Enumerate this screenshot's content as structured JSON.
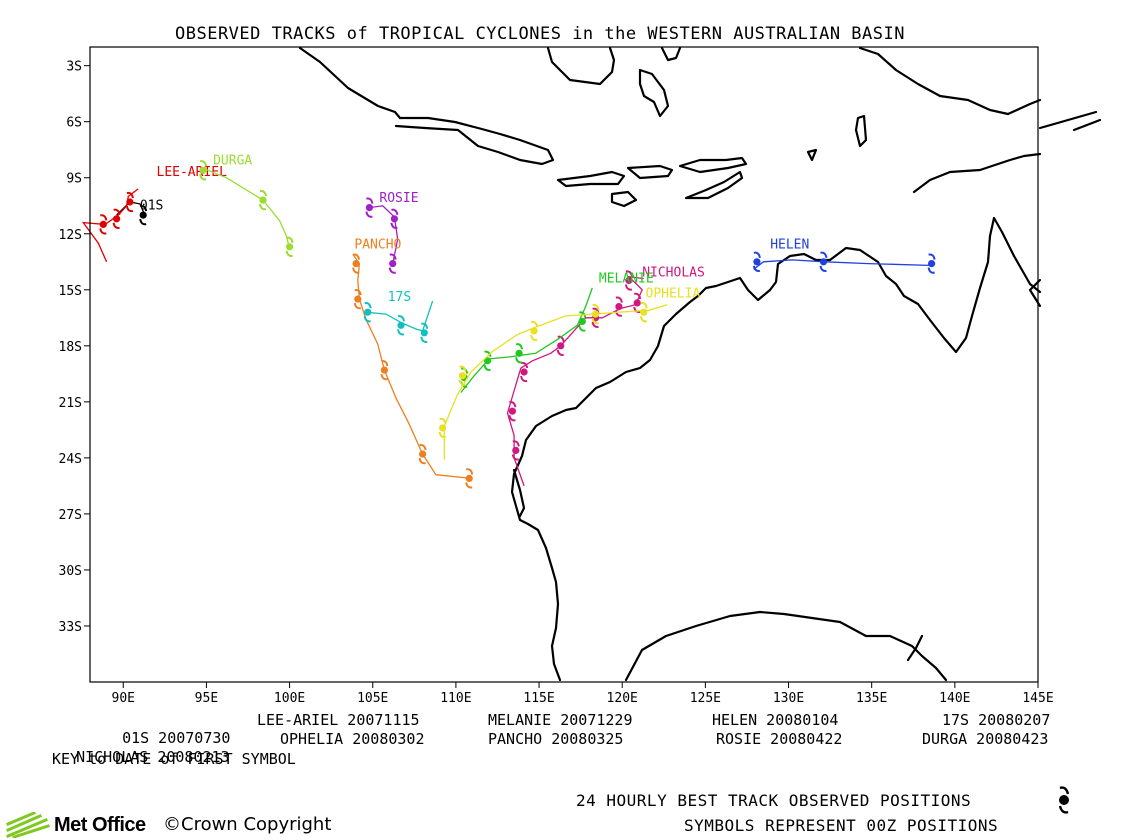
{
  "title": "OBSERVED TRACKS of TROPICAL CYCLONES in the WESTERN AUSTRALIAN BASIN",
  "map": {
    "lon_range": [
      88,
      145
    ],
    "lat_range": [
      -36,
      -2
    ],
    "lon_ticks": [
      {
        "v": 90,
        "label": "90E"
      },
      {
        "v": 95,
        "label": "95E"
      },
      {
        "v": 100,
        "label": "100E"
      },
      {
        "v": 105,
        "label": "105E"
      },
      {
        "v": 110,
        "label": "110E"
      },
      {
        "v": 115,
        "label": "115E"
      },
      {
        "v": 120,
        "label": "120E"
      },
      {
        "v": 125,
        "label": "125E"
      },
      {
        "v": 130,
        "label": "130E"
      },
      {
        "v": 135,
        "label": "135E"
      },
      {
        "v": 140,
        "label": "140E"
      },
      {
        "v": 145,
        "label": "145E"
      }
    ],
    "lat_ticks": [
      {
        "v": -3,
        "label": "3S"
      },
      {
        "v": -6,
        "label": "6S"
      },
      {
        "v": -9,
        "label": "9S"
      },
      {
        "v": -12,
        "label": "12S"
      },
      {
        "v": -15,
        "label": "15S"
      },
      {
        "v": -18,
        "label": "18S"
      },
      {
        "v": -21,
        "label": "21S"
      },
      {
        "v": -24,
        "label": "24S"
      },
      {
        "v": -27,
        "label": "27S"
      },
      {
        "v": -30,
        "label": "30S"
      },
      {
        "v": -33,
        "label": "33S"
      }
    ],
    "storms": [
      {
        "name": "01S",
        "color": "#000000",
        "label_at": [
          91,
          -10.7
        ],
        "track": [
          [
            89.6,
            -11.0
          ],
          [
            90.4,
            -10.3
          ],
          [
            91.0,
            -10.4
          ],
          [
            91.3,
            -11.0
          ]
        ],
        "positions": [
          [
            91.2,
            -11.0
          ]
        ]
      },
      {
        "name": "LEE-ARIEL",
        "color": "#e00000",
        "label_at": [
          92,
          -8.9
        ],
        "track": [
          [
            89.0,
            -13.5
          ],
          [
            88.5,
            -12.5
          ],
          [
            87.6,
            -11.4
          ],
          [
            88.9,
            -11.5
          ],
          [
            89.7,
            -11.0
          ],
          [
            90.2,
            -10.5
          ],
          [
            90.3,
            -10.0
          ],
          [
            90.9,
            -9.6
          ]
        ],
        "positions": [
          [
            88.8,
            -11.5
          ],
          [
            89.6,
            -11.2
          ],
          [
            90.4,
            -10.3
          ]
        ]
      },
      {
        "name": "DURGA",
        "color": "#9adc30",
        "label_at": [
          95.4,
          -8.3
        ],
        "track": [
          [
            94.8,
            -8.5
          ],
          [
            96.2,
            -9.0
          ],
          [
            97.3,
            -9.6
          ],
          [
            98.4,
            -10.2
          ],
          [
            99.4,
            -11.3
          ],
          [
            99.8,
            -12.1
          ],
          [
            100.0,
            -12.8
          ]
        ],
        "positions": [
          [
            94.8,
            -8.6
          ],
          [
            98.4,
            -10.2
          ],
          [
            100.0,
            -12.7
          ]
        ]
      },
      {
        "name": "ROSIE",
        "color": "#a020c8",
        "label_at": [
          105.4,
          -10.3
        ],
        "track": [
          [
            104.8,
            -10.6
          ],
          [
            105.6,
            -10.5
          ],
          [
            106.3,
            -11.1
          ],
          [
            106.5,
            -12.3
          ],
          [
            106.2,
            -13.6
          ]
        ],
        "positions": [
          [
            104.8,
            -10.6
          ],
          [
            106.3,
            -11.2
          ],
          [
            106.2,
            -13.6
          ]
        ]
      },
      {
        "name": "PANCHO",
        "color": "#ee7f20",
        "label_at": [
          103.9,
          -12.8
        ],
        "track": [
          [
            103.8,
            -13.1
          ],
          [
            104.2,
            -13.6
          ],
          [
            104.1,
            -14.5
          ],
          [
            104.2,
            -15.5
          ],
          [
            104.6,
            -16.6
          ],
          [
            105.3,
            -17.9
          ],
          [
            105.7,
            -19.3
          ],
          [
            106.4,
            -20.8
          ],
          [
            107.2,
            -22.2
          ],
          [
            108.0,
            -23.8
          ],
          [
            108.8,
            -24.9
          ],
          [
            110.9,
            -25.1
          ]
        ],
        "positions": [
          [
            104.0,
            -13.6
          ],
          [
            104.1,
            -15.5
          ],
          [
            105.7,
            -19.3
          ],
          [
            108.0,
            -23.8
          ],
          [
            110.8,
            -25.1
          ]
        ]
      },
      {
        "name": "17S",
        "color": "#10c0c0",
        "label_at": [
          105.9,
          -15.6
        ],
        "track": [
          [
            104.6,
            -16.2
          ],
          [
            105.8,
            -16.3
          ],
          [
            106.8,
            -16.8
          ],
          [
            107.6,
            -17.1
          ],
          [
            108.0,
            -17.2
          ],
          [
            108.6,
            -15.6
          ]
        ],
        "positions": [
          [
            104.7,
            -16.2
          ],
          [
            106.7,
            -16.9
          ],
          [
            108.1,
            -17.3
          ]
        ]
      },
      {
        "name": "HELEN",
        "color": "#2040e0",
        "label_at": [
          128.9,
          -12.8
        ],
        "track": [
          [
            127.9,
            -13.9
          ],
          [
            128.5,
            -13.5
          ],
          [
            130.2,
            -13.4
          ],
          [
            132.2,
            -13.5
          ],
          [
            134.8,
            -13.6
          ],
          [
            138.7,
            -13.7
          ]
        ],
        "positions": [
          [
            128.1,
            -13.5
          ],
          [
            132.1,
            -13.5
          ],
          [
            138.6,
            -13.6
          ]
        ]
      },
      {
        "name": "NICHOLAS",
        "color": "#d01880",
        "label_at": [
          121.2,
          -14.3
        ],
        "track": [
          [
            114.1,
            -25.5
          ],
          [
            113.5,
            -24.0
          ],
          [
            113.5,
            -22.8
          ],
          [
            113.1,
            -21.6
          ],
          [
            113.6,
            -20.1
          ],
          [
            113.9,
            -19.2
          ],
          [
            114.6,
            -18.8
          ],
          [
            115.7,
            -18.4
          ],
          [
            116.3,
            -18.0
          ],
          [
            117.1,
            -17.2
          ],
          [
            117.8,
            -16.5
          ],
          [
            118.8,
            -16.5
          ],
          [
            119.9,
            -16.0
          ],
          [
            120.8,
            -15.8
          ],
          [
            121.2,
            -15.0
          ],
          [
            120.4,
            -14.3
          ],
          [
            121.3,
            -14.4
          ]
        ],
        "positions": [
          [
            113.6,
            -23.6
          ],
          [
            113.4,
            -21.5
          ],
          [
            114.1,
            -19.4
          ],
          [
            116.3,
            -18.0
          ],
          [
            118.4,
            -16.5
          ],
          [
            119.8,
            -15.9
          ],
          [
            120.9,
            -15.7
          ],
          [
            120.4,
            -14.5
          ]
        ]
      },
      {
        "name": "MELANIE",
        "color": "#20c820",
        "label_at": [
          118.6,
          -14.6
        ],
        "track": [
          [
            110.3,
            -20.5
          ],
          [
            111.1,
            -19.6
          ],
          [
            112.0,
            -18.7
          ],
          [
            113.2,
            -18.6
          ],
          [
            114.8,
            -18.4
          ],
          [
            116.2,
            -17.6
          ],
          [
            117.3,
            -16.9
          ],
          [
            117.8,
            -15.9
          ],
          [
            118.2,
            -14.9
          ]
        ],
        "positions": [
          [
            110.5,
            -19.7
          ],
          [
            111.9,
            -18.8
          ],
          [
            113.8,
            -18.4
          ],
          [
            117.6,
            -16.7
          ]
        ]
      },
      {
        "name": "OPHELIA",
        "color": "#e8e020",
        "label_at": [
          121.4,
          -15.4
        ],
        "track": [
          [
            109.3,
            -24.1
          ],
          [
            109.3,
            -22.3
          ],
          [
            110.1,
            -20.6
          ],
          [
            110.9,
            -19.4
          ],
          [
            112.2,
            -18.3
          ],
          [
            113.7,
            -17.4
          ],
          [
            114.8,
            -17.0
          ],
          [
            116.6,
            -16.4
          ],
          [
            118.3,
            -16.3
          ],
          [
            119.8,
            -16.2
          ],
          [
            121.6,
            -16.1
          ],
          [
            122.7,
            -15.8
          ]
        ],
        "positions": [
          [
            109.2,
            -22.4
          ],
          [
            110.4,
            -19.6
          ],
          [
            114.7,
            -17.2
          ],
          [
            118.4,
            -16.3
          ],
          [
            121.3,
            -16.2
          ]
        ]
      }
    ]
  },
  "key": {
    "row1": [
      "01S 20070730",
      "LEE-ARIEL 20071115",
      "MELANIE 20071229",
      "HELEN 20080104",
      "17S 20080207"
    ],
    "row2": [
      "NICHOLAS 20080213",
      "OPHELIA 20080302",
      "PANCHO 20080325",
      "ROSIE 20080422",
      "DURGA 20080423"
    ],
    "note": "KEY to DATE of FIRST SYMBOL"
  },
  "footer": {
    "line1": "24 HOURLY BEST TRACK OBSERVED POSITIONS",
    "line2": "SYMBOLS REPRESENT 00Z POSITIONS",
    "logo": "Met Office",
    "copyright": "©Crown Copyright"
  }
}
